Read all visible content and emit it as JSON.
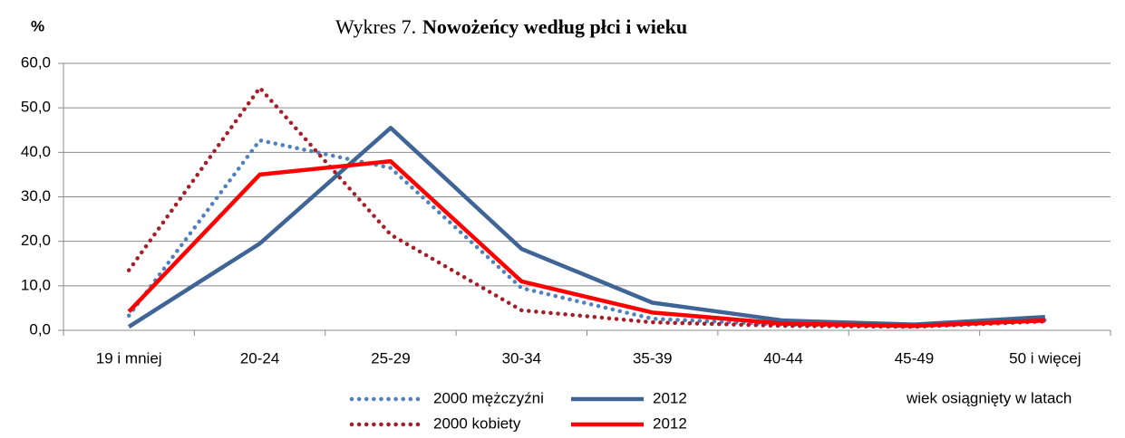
{
  "chart_data": {
    "type": "line",
    "title_number": "Wykres 7.",
    "title": "Nowożeńcy według płci i wieku",
    "y_label": "%",
    "x_label": "wiek osiągnięty w latach",
    "categories": [
      "19 i mniej",
      "20-24",
      "25-29",
      "30-34",
      "35-39",
      "40-44",
      "45-49",
      "50 i więcej"
    ],
    "series": [
      {
        "name": "2000 mężczyźni",
        "color": "#4f81bd",
        "style": "dotted",
        "values": [
          3.3,
          42.7,
          36.5,
          9.5,
          2.6,
          1.3,
          0.9,
          2.3
        ]
      },
      {
        "name": "2012",
        "color": "#3f6496",
        "style": "solid",
        "values": [
          0.8,
          19.5,
          45.5,
          18.3,
          6.2,
          2.2,
          1.3,
          3.0
        ]
      },
      {
        "name": "2000 kobiety",
        "color": "#a51e28",
        "style": "dotted",
        "values": [
          13.5,
          54.5,
          21.5,
          4.5,
          1.8,
          1.0,
          0.8,
          2.0
        ]
      },
      {
        "name": "2012",
        "color": "#ff0000",
        "style": "solid",
        "values": [
          4.2,
          35.0,
          38.0,
          11.0,
          4.0,
          1.5,
          1.0,
          2.2
        ]
      }
    ],
    "ylim": [
      0,
      60
    ],
    "yticks": [
      {
        "value": 0,
        "label": "0,0"
      },
      {
        "value": 10,
        "label": "10,0"
      },
      {
        "value": 20,
        "label": "20,0"
      },
      {
        "value": 30,
        "label": "30,0"
      },
      {
        "value": 40,
        "label": "40,0"
      },
      {
        "value": 50,
        "label": "50,0"
      },
      {
        "value": 60,
        "label": "60,0"
      }
    ],
    "grid": true
  }
}
